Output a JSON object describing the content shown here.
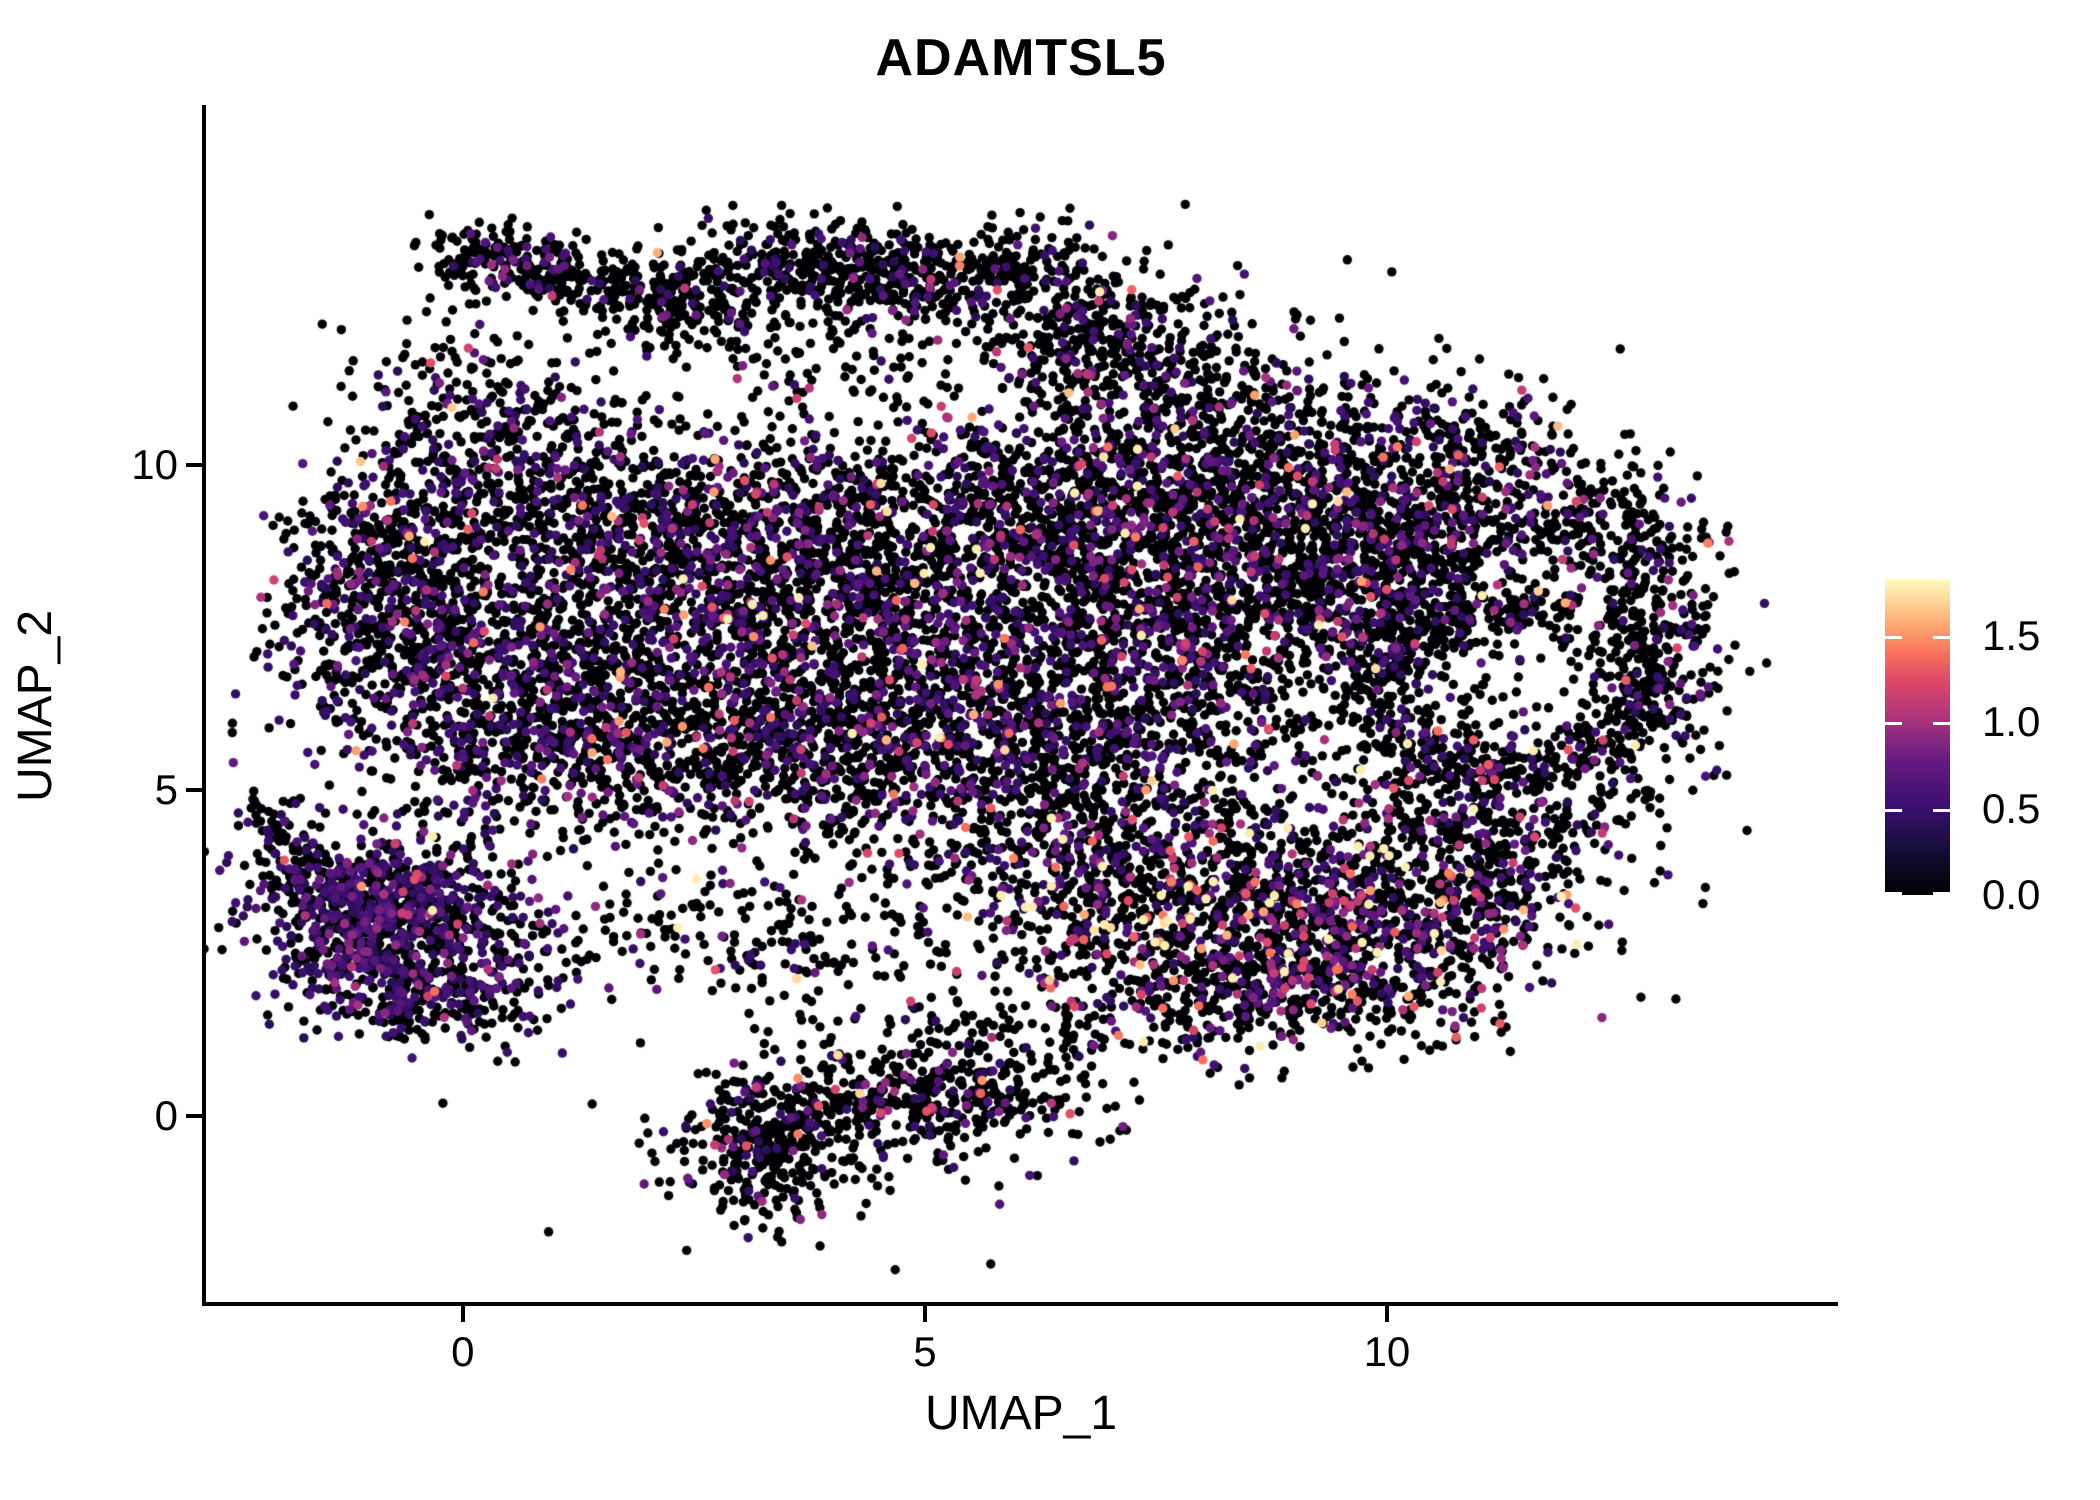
{
  "chart_data": {
    "type": "scatter",
    "title": "ADAMTSL5",
    "xlabel": "UMAP_1",
    "ylabel": "UMAP_2",
    "xlim": [
      -2.79,
      14.87
    ],
    "ylim": [
      -2.85,
      15.52
    ],
    "grid": false,
    "x_ticks": [
      {
        "label": "0",
        "value": 0
      },
      {
        "label": "5",
        "value": 5
      },
      {
        "label": "10",
        "value": 10
      }
    ],
    "y_ticks": [
      {
        "label": "10",
        "value": 10
      },
      {
        "label": "5",
        "value": 5
      },
      {
        "label": "0",
        "value": 0
      }
    ],
    "legend": {
      "position": "right",
      "domain": [
        0,
        1.83
      ],
      "colormap": "magma",
      "ticks": [
        {
          "label": "1.5",
          "value": 1.5
        },
        {
          "label": "1.0",
          "value": 1.0
        },
        {
          "label": "0.5",
          "value": 0.5
        },
        {
          "label": "0.0",
          "value": 0.0
        }
      ]
    },
    "color_scale": {
      "zero_color": "#000004",
      "purple_mid": "#8c2981",
      "pink_high": "#de4968",
      "orange_higher": "#fe9f6d",
      "cream_max": "#fcfdbf",
      "stops": [
        [
          0.0,
          "#000004"
        ],
        [
          0.14,
          "#140e36"
        ],
        [
          0.28,
          "#3b0f70"
        ],
        [
          0.42,
          "#641a80"
        ],
        [
          0.5,
          "#8c2981"
        ],
        [
          0.58,
          "#b73779"
        ],
        [
          0.68,
          "#de4968"
        ],
        [
          0.76,
          "#f7705c"
        ],
        [
          0.84,
          "#fe9f6d"
        ],
        [
          0.92,
          "#fecf92"
        ],
        [
          1.0,
          "#fcfdbf"
        ]
      ]
    },
    "point_radius_px": 4.7,
    "seed": 42,
    "expression_base": 0.38,
    "expression_max": 1.78,
    "clusters": [
      {
        "id": "cap-beak",
        "x": 0.62,
        "y": 13.1,
        "sx": 0.5,
        "sy": 0.3,
        "rot": -28,
        "n": 230,
        "p0": 0.85,
        "vmu": 0.25
      },
      {
        "id": "cap-left",
        "x": 2.1,
        "y": 12.55,
        "sx": 0.62,
        "sy": 0.3,
        "rot": -18,
        "n": 240,
        "p0": 0.88,
        "vmu": 0.25
      },
      {
        "id": "cap-mid",
        "x": 3.8,
        "y": 13.1,
        "sx": 0.8,
        "sy": 0.32,
        "rot": -5,
        "n": 330,
        "p0": 0.88,
        "vmu": 0.25
      },
      {
        "id": "cap-right",
        "x": 5.4,
        "y": 12.9,
        "sx": 0.75,
        "sy": 0.33,
        "rot": 12,
        "n": 300,
        "p0": 0.88,
        "vmu": 0.25
      },
      {
        "id": "cap-slope",
        "x": 6.8,
        "y": 12.0,
        "sx": 0.55,
        "sy": 0.5,
        "rot": 38,
        "n": 240,
        "p0": 0.88,
        "vmu": 0.25
      },
      {
        "id": "cap-fill",
        "x": 4.0,
        "y": 11.7,
        "sx": 1.6,
        "sy": 0.7,
        "rot": 0,
        "n": 160,
        "p0": 0.9,
        "vmu": 0.25
      },
      {
        "id": "upper-right-fill",
        "x": 7.7,
        "y": 11.2,
        "sx": 0.95,
        "sy": 0.8,
        "rot": 0,
        "n": 330,
        "p0": 0.84,
        "vmu": 0.28
      },
      {
        "id": "edge-upleft",
        "x": 0.3,
        "y": 10.4,
        "sx": 0.7,
        "sy": 0.95,
        "rot": 15,
        "n": 380,
        "p0": 0.76,
        "vmu": 0.25
      },
      {
        "id": "top-band-1",
        "x": 1.7,
        "y": 9.1,
        "sx": 1.0,
        "sy": 0.8,
        "rot": 0,
        "n": 620,
        "p0": 0.72,
        "vmu": 0.25
      },
      {
        "id": "top-band-2",
        "x": 3.9,
        "y": 8.8,
        "sx": 1.1,
        "sy": 0.9,
        "rot": 0,
        "n": 750,
        "p0": 0.75,
        "vmu": 0.28
      },
      {
        "id": "top-band-3",
        "x": 6.3,
        "y": 9.3,
        "sx": 1.2,
        "sy": 0.9,
        "rot": 0,
        "n": 800,
        "p0": 0.75,
        "vmu": 0.3
      },
      {
        "id": "top-band-4",
        "x": 8.6,
        "y": 9.6,
        "sx": 1.2,
        "sy": 0.85,
        "rot": 0,
        "n": 850,
        "p0": 0.72,
        "vmu": 0.32
      },
      {
        "id": "top-right",
        "x": 10.6,
        "y": 9.9,
        "sx": 0.8,
        "sy": 0.7,
        "rot": 0,
        "n": 400,
        "p0": 0.8,
        "vmu": 0.3
      },
      {
        "id": "left-lobe",
        "x": -0.6,
        "y": 7.6,
        "sx": 0.75,
        "sy": 1.1,
        "rot": 0,
        "n": 700,
        "p0": 0.7,
        "vmu": 0.24
      },
      {
        "id": "left-lobe-2",
        "x": 0.8,
        "y": 6.7,
        "sx": 0.8,
        "sy": 1.0,
        "rot": 0,
        "n": 600,
        "p0": 0.72,
        "vmu": 0.25
      },
      {
        "id": "left-edge",
        "x": -1.0,
        "y": 8.9,
        "sx": 0.45,
        "sy": 0.6,
        "rot": 20,
        "n": 150,
        "p0": 0.74,
        "vmu": 0.24
      },
      {
        "id": "core-1",
        "x": 2.8,
        "y": 6.8,
        "sx": 1.2,
        "sy": 1.0,
        "rot": 0,
        "n": 700,
        "p0": 0.75,
        "vmu": 0.28
      },
      {
        "id": "core-2",
        "x": 5.0,
        "y": 7.0,
        "sx": 1.3,
        "sy": 1.0,
        "rot": 0,
        "n": 750,
        "p0": 0.75,
        "vmu": 0.3
      },
      {
        "id": "core-3",
        "x": 7.2,
        "y": 7.3,
        "sx": 1.2,
        "sy": 1.0,
        "rot": 0,
        "n": 800,
        "p0": 0.72,
        "vmu": 0.32
      },
      {
        "id": "core-4",
        "x": 9.2,
        "y": 7.8,
        "sx": 1.0,
        "sy": 0.9,
        "rot": 0,
        "n": 600,
        "p0": 0.78,
        "vmu": 0.3
      },
      {
        "id": "low-band-1",
        "x": 1.7,
        "y": 5.4,
        "sx": 1.2,
        "sy": 0.7,
        "rot": 0,
        "n": 420,
        "p0": 0.72,
        "vmu": 0.25
      },
      {
        "id": "low-band-2",
        "x": 4.2,
        "y": 5.5,
        "sx": 1.4,
        "sy": 0.62,
        "rot": -8,
        "n": 480,
        "p0": 0.75,
        "vmu": 0.3
      },
      {
        "id": "low-band-3",
        "x": 6.6,
        "y": 5.6,
        "sx": 1.2,
        "sy": 0.6,
        "rot": 0,
        "n": 430,
        "p0": 0.78,
        "vmu": 0.3
      },
      {
        "id": "ring",
        "shape": "ring",
        "x": 11.35,
        "y": 6.55,
        "r": 1.45,
        "w": 0.26,
        "squish": 0.85,
        "n": 500,
        "p0": 0.84,
        "vmu": 0.3
      },
      {
        "id": "ring-inner",
        "x": 11.3,
        "y": 6.5,
        "sx": 0.55,
        "sy": 0.5,
        "rot": 0,
        "n": 25,
        "p0": 0.85,
        "vmu": 0.3
      },
      {
        "id": "right-edge",
        "x": 12.9,
        "y": 7.2,
        "sx": 0.45,
        "sy": 1.0,
        "rot": 0,
        "n": 260,
        "p0": 0.84,
        "vmu": 0.3
      },
      {
        "id": "ring-bridge",
        "x": 10.2,
        "y": 8.3,
        "sx": 0.7,
        "sy": 0.7,
        "rot": 0,
        "n": 320,
        "p0": 0.8,
        "vmu": 0.3
      },
      {
        "id": "below-ring",
        "x": 11.0,
        "y": 4.9,
        "sx": 1.0,
        "sy": 0.55,
        "rot": -15,
        "n": 350,
        "p0": 0.78,
        "vmu": 0.38
      },
      {
        "id": "right-notch",
        "x": 12.3,
        "y": 9.0,
        "sx": 0.6,
        "sy": 0.5,
        "rot": 0,
        "n": 200,
        "p0": 0.84,
        "vmu": 0.28
      },
      {
        "id": "br-lobe-1",
        "x": 7.6,
        "y": 3.1,
        "sx": 1.1,
        "sy": 0.75,
        "rot": 0,
        "n": 600,
        "p0": 0.7,
        "vmu": 0.5
      },
      {
        "id": "br-lobe-2",
        "x": 9.4,
        "y": 2.9,
        "sx": 1.0,
        "sy": 0.8,
        "rot": 0,
        "n": 650,
        "p0": 0.68,
        "vmu": 0.5
      },
      {
        "id": "br-lobe-3",
        "x": 10.9,
        "y": 3.4,
        "sx": 0.7,
        "sy": 0.6,
        "rot": 0,
        "n": 330,
        "p0": 0.74,
        "vmu": 0.45
      },
      {
        "id": "br-bottom",
        "x": 8.7,
        "y": 1.8,
        "sx": 1.3,
        "sy": 0.45,
        "rot": 0,
        "n": 350,
        "p0": 0.72,
        "vmu": 0.5
      },
      {
        "id": "br-top",
        "x": 7.0,
        "y": 4.3,
        "sx": 1.3,
        "sy": 0.5,
        "rot": 0,
        "n": 260,
        "p0": 0.78,
        "vmu": 0.45
      },
      {
        "id": "left-cluster",
        "x": -0.65,
        "y": 2.9,
        "sx": 0.85,
        "sy": 0.75,
        "rot": 0,
        "n": 800,
        "p0": 0.58,
        "vmu": 0.2
      },
      {
        "id": "left-cluster-core",
        "x": -1.05,
        "y": 3.3,
        "sx": 0.4,
        "sy": 0.45,
        "rot": 0,
        "n": 280,
        "p0": 0.55,
        "vmu": 0.2
      },
      {
        "id": "left-cluster-tail",
        "x": -1.8,
        "y": 4.2,
        "sx": 0.18,
        "sy": 0.5,
        "rot": 25,
        "n": 90,
        "p0": 0.72,
        "vmu": 0.2
      },
      {
        "id": "left-cluster-bottom",
        "x": -0.3,
        "y": 1.7,
        "sx": 0.6,
        "sy": 0.3,
        "rot": 0,
        "n": 150,
        "p0": 0.66,
        "vmu": 0.2
      },
      {
        "id": "bottom-cluster-1",
        "x": 3.3,
        "y": -0.55,
        "sx": 0.45,
        "sy": 0.55,
        "rot": 0,
        "n": 280,
        "p0": 0.84,
        "vmu": 0.35
      },
      {
        "id": "bottom-cluster-2",
        "x": 4.3,
        "y": 0.2,
        "sx": 0.8,
        "sy": 0.45,
        "rot": 0,
        "n": 240,
        "p0": 0.85,
        "vmu": 0.35
      },
      {
        "id": "bottom-cluster-3",
        "x": 5.6,
        "y": 0.35,
        "sx": 0.7,
        "sy": 0.4,
        "rot": 0,
        "n": 170,
        "p0": 0.85,
        "vmu": 0.35
      },
      {
        "id": "bottom-cluster-halo",
        "x": 4.3,
        "y": -0.1,
        "sx": 1.4,
        "sy": 0.8,
        "rot": 0,
        "n": 110,
        "p0": 0.88,
        "vmu": 0.3
      },
      {
        "id": "connector-1",
        "x": 1.9,
        "y": 2.8,
        "sx": 1.3,
        "sy": 0.5,
        "rot": 0,
        "n": 110,
        "p0": 0.78,
        "vmu": 0.3
      },
      {
        "id": "connector-2",
        "x": 3.9,
        "y": 2.6,
        "sx": 1.2,
        "sy": 0.5,
        "rot": 0,
        "n": 130,
        "p0": 0.8,
        "vmu": 0.35
      },
      {
        "id": "mid-gap",
        "x": 5.6,
        "y": 3.9,
        "sx": 1.5,
        "sy": 0.7,
        "rot": 0,
        "n": 150,
        "p0": 0.8,
        "vmu": 0.35
      },
      {
        "id": "bridge-right",
        "x": 6.1,
        "y": 1.2,
        "sx": 0.9,
        "sy": 0.35,
        "rot": 10,
        "n": 100,
        "p0": 0.85,
        "vmu": 0.35
      }
    ]
  }
}
